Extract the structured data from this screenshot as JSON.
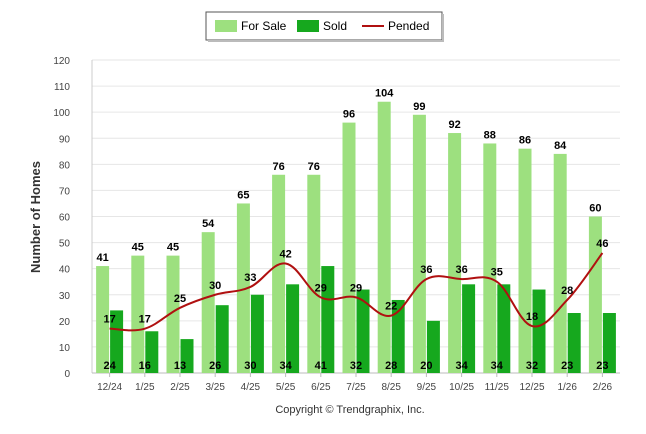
{
  "chart_data": {
    "type": "bar",
    "title": "",
    "ylabel": "Number of Homes",
    "xlabel": "",
    "ylim": [
      0,
      120
    ],
    "yticks": [
      0,
      10,
      20,
      30,
      40,
      50,
      60,
      70,
      80,
      90,
      100,
      110,
      120
    ],
    "categories": [
      "12/24",
      "1/25",
      "2/25",
      "3/25",
      "4/25",
      "5/25",
      "6/25",
      "7/25",
      "8/25",
      "9/25",
      "10/25",
      "11/25",
      "12/25",
      "1/26",
      "2/26"
    ],
    "series": [
      {
        "name": "For Sale",
        "kind": "bar",
        "color": "#9de07f",
        "values": [
          41,
          45,
          45,
          54,
          65,
          76,
          76,
          96,
          104,
          99,
          92,
          88,
          86,
          84,
          60
        ]
      },
      {
        "name": "Sold",
        "kind": "bar",
        "color": "#16a81e",
        "values": [
          24,
          16,
          13,
          26,
          30,
          34,
          41,
          32,
          28,
          20,
          34,
          34,
          32,
          23,
          23
        ]
      },
      {
        "name": "Pended",
        "kind": "line",
        "color": "#b01010",
        "values": [
          17,
          17,
          25,
          30,
          33,
          42,
          29,
          29,
          22,
          36,
          36,
          35,
          18,
          28,
          46
        ]
      }
    ],
    "legend": {
      "position": "top-center",
      "items": [
        "For Sale",
        "Sold",
        "Pended"
      ]
    },
    "grid": true,
    "copyright": "Copyright © Trendgraphix, Inc."
  }
}
